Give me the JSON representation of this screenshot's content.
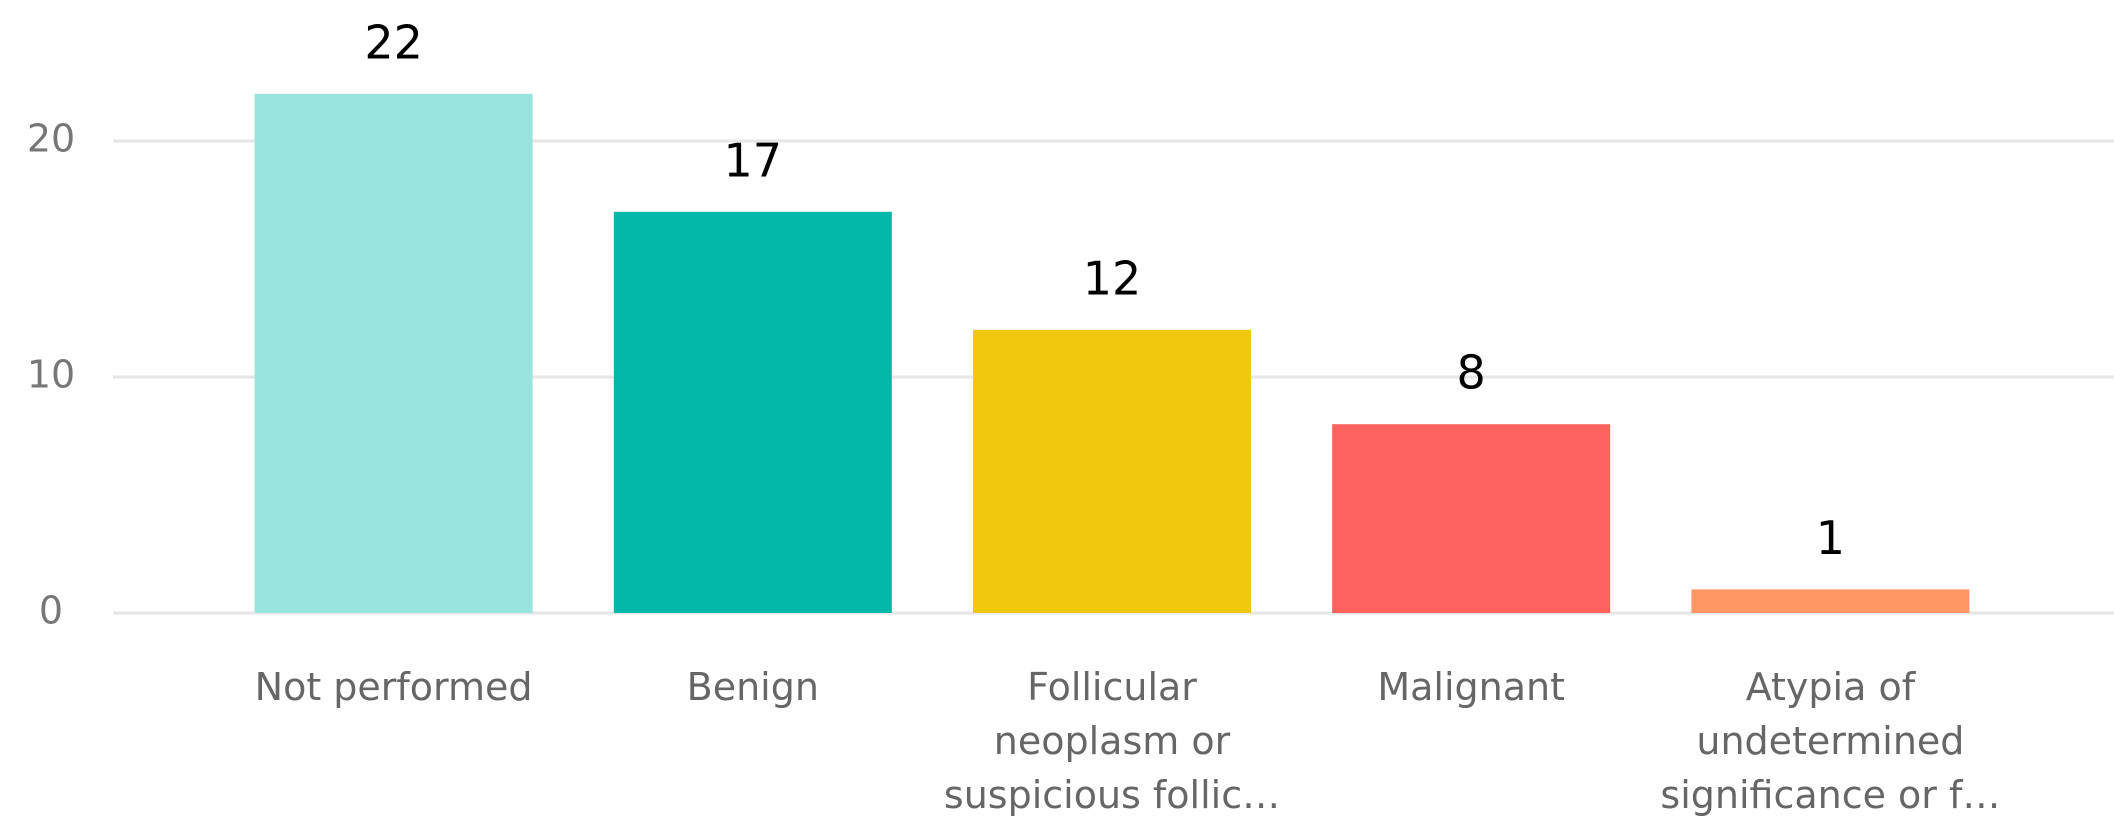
{
  "chart_data": {
    "type": "bar",
    "categories": [
      "Not performed",
      "Benign",
      "Follicular neoplasm or suspicious follic…",
      "Malignant",
      "Atypia of undetermined significance or f…"
    ],
    "values": [
      22,
      17,
      12,
      8,
      1
    ],
    "colors": [
      "#99e4dc",
      "#01b8aa",
      "#f2c80f",
      "#fd625e",
      "#fe9666"
    ],
    "ylim": [
      0,
      25
    ],
    "yticks": [
      0,
      10,
      20
    ],
    "grid": true
  }
}
